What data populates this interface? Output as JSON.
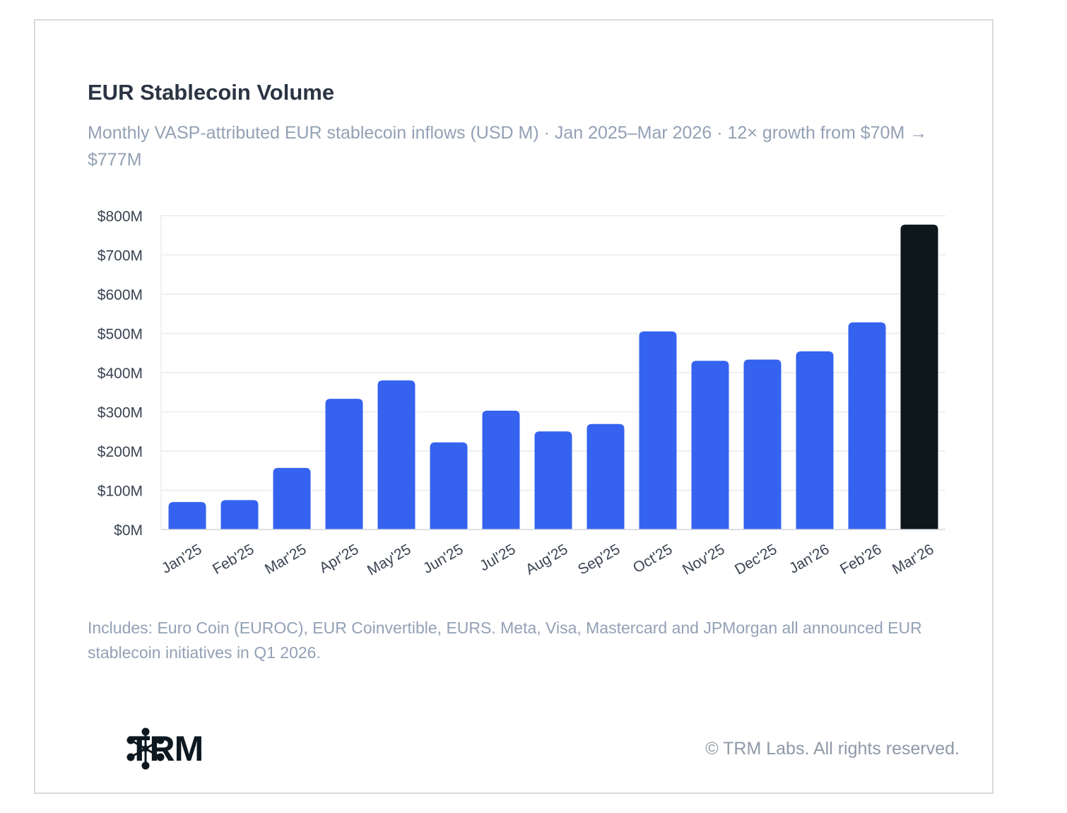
{
  "title": "EUR Stablecoin Volume",
  "subtitle": "Monthly VASP-attributed EUR stablecoin inflows (USD M) · Jan 2025–Mar 2026 · 12× growth from $70M → $777M",
  "note": "Includes: Euro Coin (EUROC), EUR Coinvertible, EURS. Meta, Visa, Mastercard and JPMorgan all announced EUR stablecoin initiatives in Q1 2026.",
  "logo_text": "TRM",
  "copyright": "© TRM Labs. All rights reserved.",
  "colors": {
    "bar": "#3563ef",
    "highlight": "#0d171c",
    "grid": "#e8ebef"
  },
  "chart_data": {
    "type": "bar",
    "title": "EUR Stablecoin Volume",
    "xlabel": "",
    "ylabel": "",
    "categories": [
      "Jan'25",
      "Feb'25",
      "Mar'25",
      "Apr'25",
      "May'25",
      "Jun'25",
      "Jul'25",
      "Aug'25",
      "Sep'25",
      "Oct'25",
      "Nov'25",
      "Dec'25",
      "Jan'26",
      "Feb'26",
      "Mar'26"
    ],
    "values": [
      70,
      75,
      157,
      333,
      380,
      222,
      303,
      250,
      269,
      505,
      430,
      433,
      454,
      528,
      777
    ],
    "highlight_index": 14,
    "ylim": [
      0,
      800
    ],
    "yticks": [
      0,
      100,
      200,
      300,
      400,
      500,
      600,
      700,
      800
    ],
    "ytick_labels": [
      "$0M",
      "$100M",
      "$200M",
      "$300M",
      "$400M",
      "$500M",
      "$600M",
      "$700M",
      "$800M"
    ],
    "grid": true,
    "legend": "none"
  }
}
